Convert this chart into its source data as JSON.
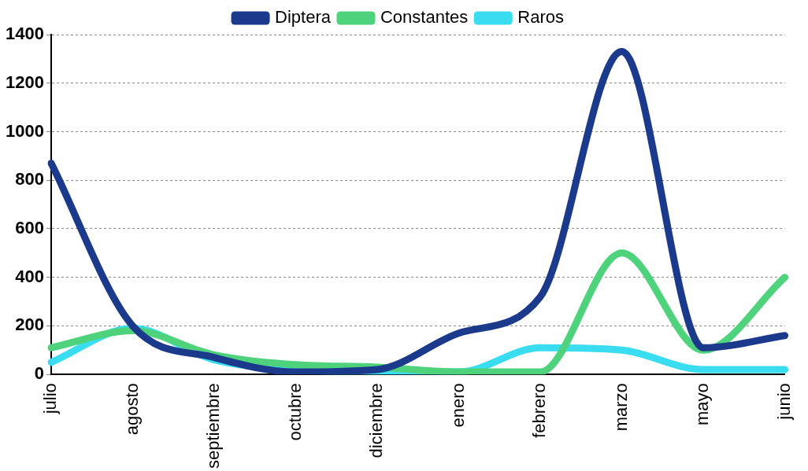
{
  "chart_data": {
    "type": "line",
    "categories": [
      "julio",
      "agosto",
      "septiembre",
      "octubre",
      "diciembre",
      "enero",
      "febrero",
      "marzo",
      "mayo",
      "junio"
    ],
    "series": [
      {
        "name": "Diptera",
        "color": "#1c3a8c",
        "values": [
          870,
          200,
          70,
          10,
          20,
          170,
          320,
          1330,
          110,
          160
        ]
      },
      {
        "name": "Constantes",
        "color": "#4fd27c",
        "values": [
          110,
          180,
          80,
          40,
          30,
          10,
          10,
          500,
          100,
          400
        ]
      },
      {
        "name": "Raros",
        "color": "#3adcf0",
        "values": [
          50,
          190,
          60,
          20,
          10,
          10,
          110,
          100,
          20,
          20
        ]
      }
    ],
    "ylim": [
      0,
      1400
    ],
    "yticks": [
      0,
      200,
      400,
      600,
      800,
      1000,
      1200,
      1400
    ],
    "grid": "y",
    "legend": "top",
    "marker": "none",
    "line_style": "solid"
  }
}
